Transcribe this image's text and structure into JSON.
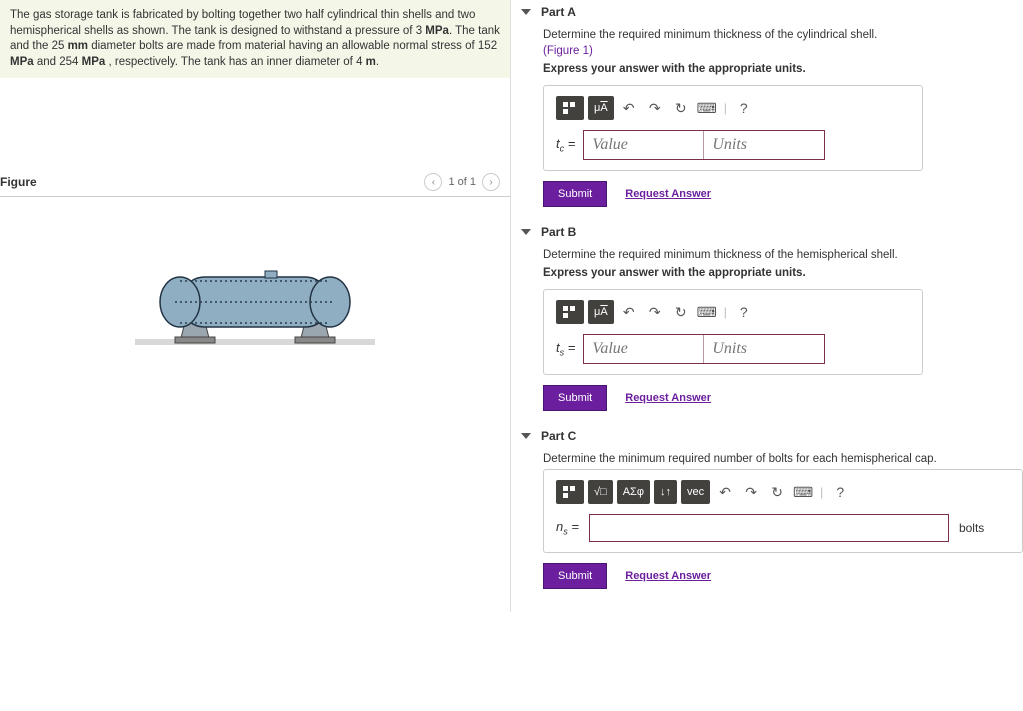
{
  "problem": {
    "text_segments": [
      "The gas storage tank is fabricated by bolting together two half cylindrical thin shells and two hemispherical shells as shown. The tank is designed to withstand a pressure of 3 ",
      "MPa",
      ". The tank and the 25 ",
      "mm",
      " diameter bolts are made from material having an allowable normal stress of 152 ",
      "MPa",
      " and 254 ",
      "MPa",
      " , respectively. The tank has an inner diameter of 4 ",
      "m",
      "."
    ]
  },
  "figure": {
    "label": "Figure",
    "counter": "1 of 1",
    "tank": {
      "body_fill": "#8faec2",
      "body_stroke": "#223344",
      "rivet_fill": "#2a3b4a",
      "ground_fill": "#d8d8d8",
      "support_fill": "#9aa6b0"
    }
  },
  "parts": [
    {
      "key": "A",
      "title": "Part A",
      "prompt": "Determine the required minimum thickness of the cylindrical shell.",
      "figure_link": "(Figure 1)",
      "express": "Express your answer with the appropriate units.",
      "var_html": "t<sub>c</sub> =",
      "input_type": "value_units",
      "value_placeholder": "Value",
      "units_placeholder": "Units",
      "toolbar": [
        "templates",
        "uA",
        "undo",
        "redo",
        "reset",
        "keyboard",
        "|",
        "help"
      ]
    },
    {
      "key": "B",
      "title": "Part B",
      "prompt": "Determine the required minimum thickness of the hemispherical shell.",
      "express": "Express your answer with the appropriate units.",
      "var_html": "t<sub>s</sub> =",
      "input_type": "value_units",
      "value_placeholder": "Value",
      "units_placeholder": "Units",
      "toolbar": [
        "templates",
        "uA",
        "undo",
        "redo",
        "reset",
        "keyboard",
        "|",
        "help"
      ]
    },
    {
      "key": "C",
      "title": "Part C",
      "prompt": "Determine the minimum required number of bolts for each hemispherical cap.",
      "var_html": "n<sub>s</sub> =",
      "input_type": "single",
      "units_label": "bolts",
      "toolbar": [
        "templates",
        "sqrt",
        "greek",
        "updown",
        "vec",
        "undo",
        "redo",
        "reset",
        "keyboard",
        "|",
        "help"
      ]
    }
  ],
  "buttons": {
    "submit": "Submit",
    "request": "Request Answer"
  },
  "colors": {
    "accent": "#6b1f9e",
    "toolbar_dark": "#43413e",
    "input_border": "#7a304c"
  },
  "icons": {
    "undo": "↶",
    "redo": "↷",
    "reset": "↻",
    "keyboard": "⌨",
    "help": "?",
    "sqrt": "√□",
    "greek": "ΑΣφ",
    "updown": "↓↑",
    "vec": "vec",
    "templates_svg": "mini-grid",
    "uA": "μÅ"
  }
}
